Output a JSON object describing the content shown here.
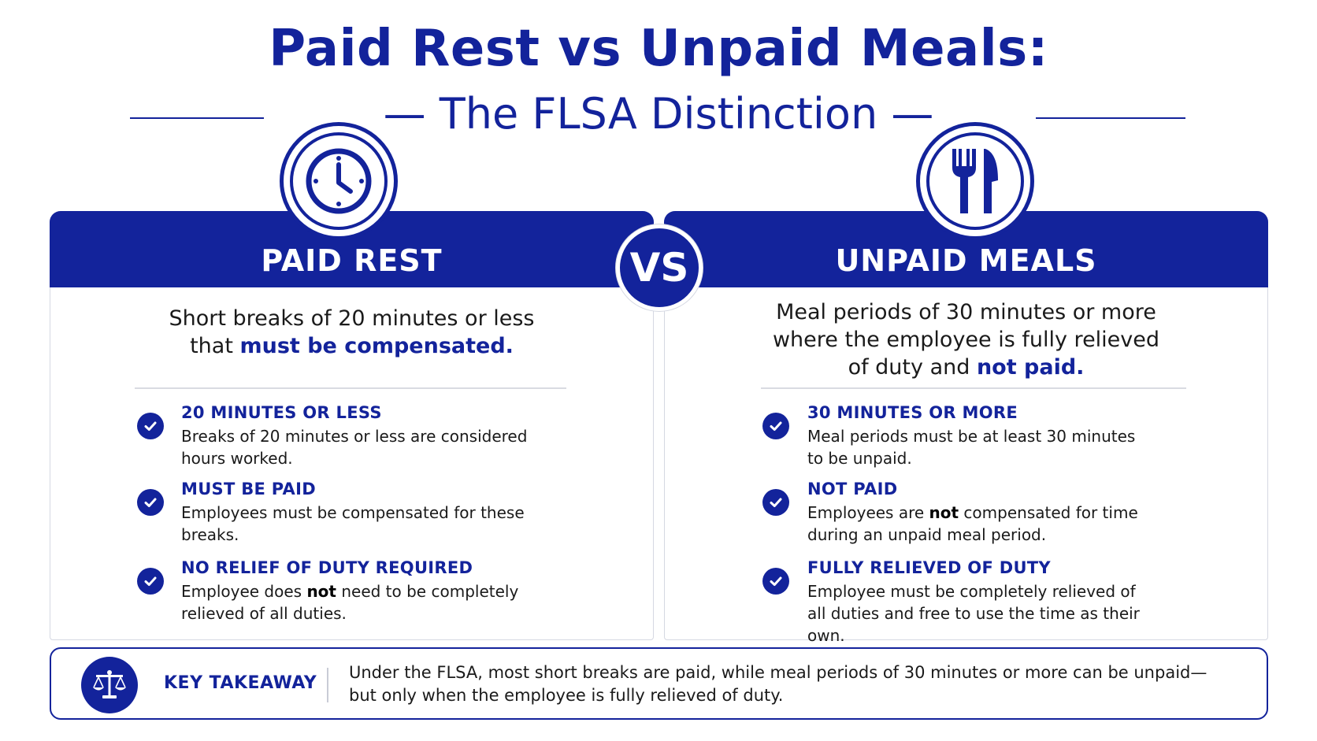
{
  "header": {
    "title": "Paid Rest vs Unpaid Meals:",
    "subtitle": "— The FLSA Distinction —"
  },
  "vs_label": "VS",
  "left": {
    "label": "PAID REST",
    "icon": "clock-icon",
    "lead_pre": "Short breaks of 20 minutes or less that ",
    "lead_bold": "must be compensated.",
    "items": [
      {
        "title": "20 MINUTES OR LESS",
        "body_pre": "Breaks of 20 minutes or less are considered hours worked.",
        "body_bold": "",
        "body_post": ""
      },
      {
        "title": "MUST BE PAID",
        "body_pre": "Employees must be compensated for these breaks.",
        "body_bold": "",
        "body_post": ""
      },
      {
        "title": "NO RELIEF OF DUTY REQUIRED",
        "body_pre": "Employee does ",
        "body_bold": "not",
        "body_post": " need to be completely relieved of all duties."
      }
    ]
  },
  "right": {
    "label": "UNPAID MEALS",
    "icon": "fork-knife-icon",
    "lead_pre": "Meal periods of 30 minutes or more where the employee is fully relieved of duty and ",
    "lead_bold": "not paid.",
    "items": [
      {
        "title": "30 MINUTES OR MORE",
        "body_pre": "Meal periods must be at least 30 minutes to be unpaid.",
        "body_bold": "",
        "body_post": ""
      },
      {
        "title": "NOT PAID",
        "body_pre": "Employees are ",
        "body_bold": "not",
        "body_post": " compensated for time during an unpaid meal period."
      },
      {
        "title": "FULLY RELIEVED OF DUTY",
        "body_pre": "Employee must be completely relieved of all duties and free to use the time as their own.",
        "body_bold": "",
        "body_post": ""
      }
    ]
  },
  "takeaway": {
    "label": "KEY TAKEAWAY",
    "icon": "scales-icon",
    "text": "Under the FLSA, most short breaks are paid, while meal periods of 30 minutes or more can be unpaid—but only when the employee is fully relieved of duty."
  },
  "colors": {
    "brand": "#13239b",
    "border": "#d5d8e2"
  }
}
